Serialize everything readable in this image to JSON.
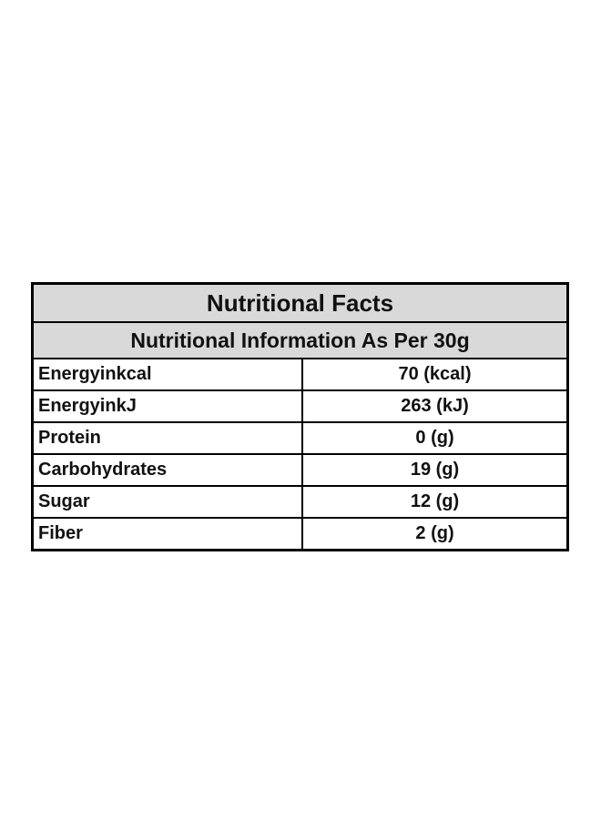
{
  "table": {
    "title": "Nutritional Facts",
    "subtitle": "Nutritional Information As Per 30g",
    "rows": [
      [
        "Energyinkcal",
        "70 (kcal)"
      ],
      [
        "EnergyinkJ",
        "263 (kJ)"
      ],
      [
        "Protein",
        "0 (g)"
      ],
      [
        "Carbohydrates",
        "19 (g)"
      ],
      [
        "Sugar",
        "12 (g)"
      ],
      [
        "Fiber",
        "2 (g)"
      ]
    ]
  }
}
